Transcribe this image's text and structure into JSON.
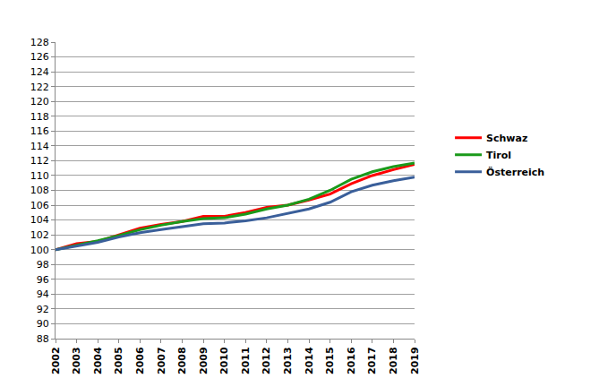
{
  "chart_data": {
    "type": "line",
    "x": [
      2002,
      2003,
      2004,
      2005,
      2006,
      2007,
      2008,
      2009,
      2010,
      2011,
      2012,
      2013,
      2014,
      2015,
      2016,
      2017,
      2018,
      2019
    ],
    "series": [
      {
        "name": "Schwaz",
        "color": "#ff0000",
        "values": [
          100,
          100.8,
          101.1,
          102.0,
          102.9,
          103.4,
          103.8,
          104.5,
          104.5,
          105.0,
          105.7,
          106.0,
          106.7,
          107.5,
          108.9,
          110.0,
          110.8,
          111.5
        ]
      },
      {
        "name": "Tirol",
        "color": "#1a9a1a",
        "values": [
          100,
          100.6,
          101.2,
          101.9,
          102.7,
          103.3,
          103.8,
          104.2,
          104.3,
          104.8,
          105.5,
          106.0,
          106.8,
          108.0,
          109.5,
          110.5,
          111.2,
          111.7
        ]
      },
      {
        "name": "Österreich",
        "color": "#3a5f9a",
        "values": [
          100,
          100.5,
          101.0,
          101.7,
          102.3,
          102.7,
          103.1,
          103.5,
          103.6,
          103.9,
          104.3,
          104.9,
          105.5,
          106.4,
          107.8,
          108.7,
          109.3,
          109.8
        ]
      }
    ],
    "xlim": [
      2002,
      2019
    ],
    "xticks": [
      2002,
      2003,
      2004,
      2005,
      2006,
      2007,
      2008,
      2009,
      2010,
      2011,
      2012,
      2013,
      2014,
      2015,
      2016,
      2017,
      2018,
      2019
    ],
    "ylim": [
      88,
      128
    ],
    "yticks": [
      88,
      90,
      92,
      94,
      96,
      98,
      100,
      102,
      104,
      106,
      108,
      110,
      112,
      114,
      116,
      118,
      120,
      122,
      124,
      126,
      128
    ],
    "grid": true,
    "legend": "right"
  }
}
